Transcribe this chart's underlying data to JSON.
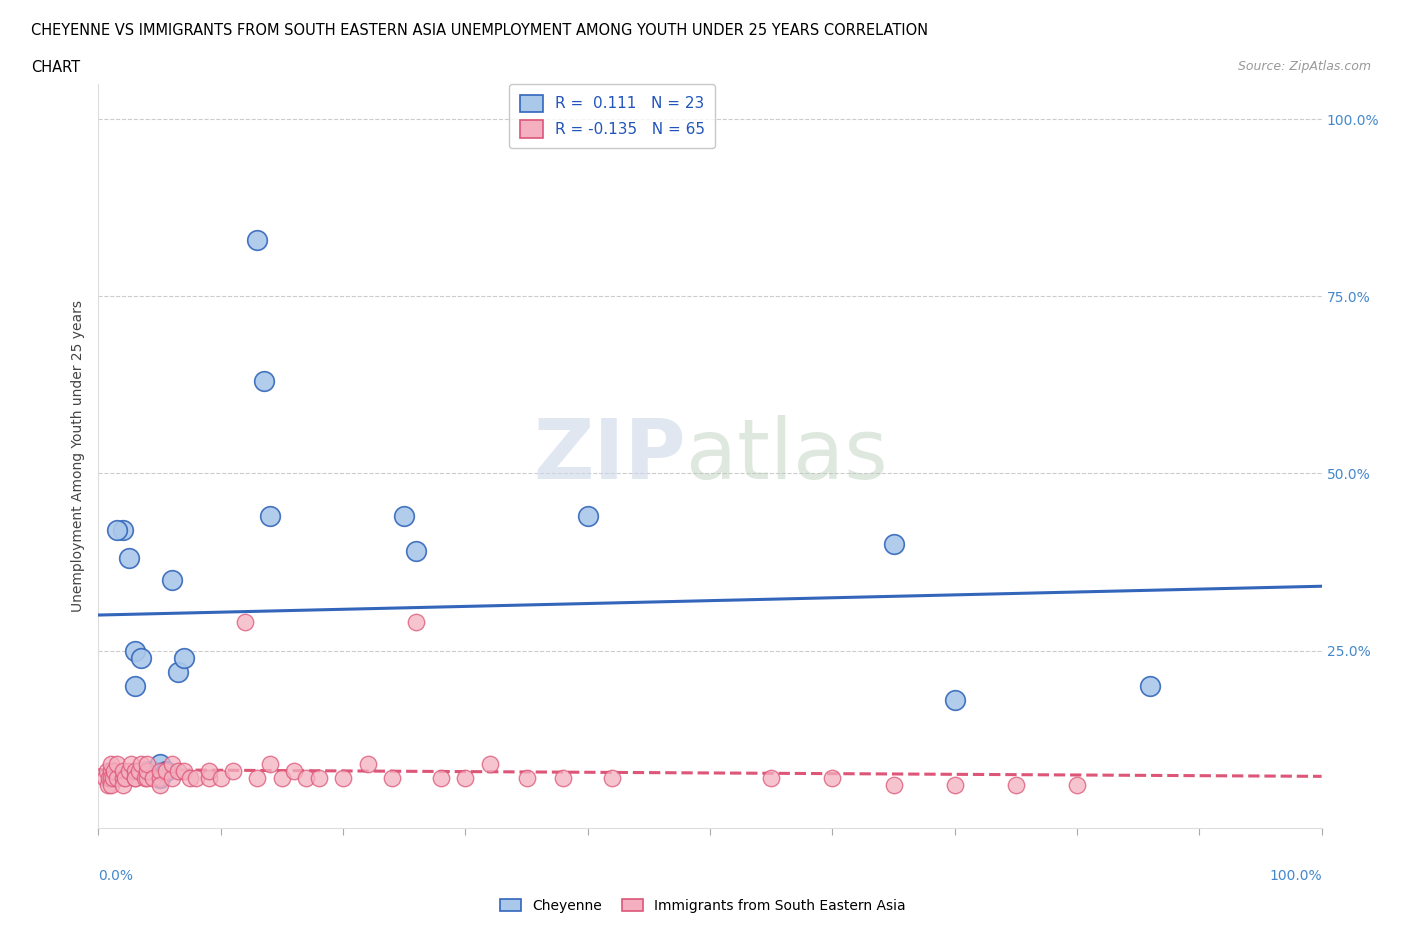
{
  "title_line1": "CHEYENNE VS IMMIGRANTS FROM SOUTH EASTERN ASIA UNEMPLOYMENT AMONG YOUTH UNDER 25 YEARS CORRELATION",
  "title_line2": "CHART",
  "source_text": "Source: ZipAtlas.com",
  "ylabel": "Unemployment Among Youth under 25 years",
  "cheyenne_R": 0.111,
  "cheyenne_N": 23,
  "immigrant_R": -0.135,
  "immigrant_N": 65,
  "cheyenne_color": "#aac8ea",
  "immigrant_color": "#f4b0c0",
  "cheyenne_line_color": "#3366bb",
  "immigrant_line_color": "#dd5577",
  "ytick_values": [
    0.25,
    0.5,
    0.75,
    1.0
  ],
  "ytick_labels": [
    "25.0%",
    "50.0%",
    "75.0%",
    "100.0%"
  ],
  "cheyenne_x": [
    0.02,
    0.025,
    0.03,
    0.035,
    0.04,
    0.045,
    0.05,
    0.05,
    0.055,
    0.06,
    0.065,
    0.07,
    0.13,
    0.135,
    0.14,
    0.25,
    0.26,
    0.4,
    0.65,
    0.7,
    0.86,
    0.015,
    0.03
  ],
  "cheyenne_y": [
    0.42,
    0.38,
    0.25,
    0.24,
    0.08,
    0.08,
    0.07,
    0.09,
    0.08,
    0.35,
    0.22,
    0.24,
    0.83,
    0.63,
    0.44,
    0.44,
    0.39,
    0.44,
    0.4,
    0.18,
    0.2,
    0.42,
    0.2
  ],
  "immigrant_x": [
    0.005,
    0.007,
    0.008,
    0.009,
    0.01,
    0.01,
    0.01,
    0.01,
    0.012,
    0.013,
    0.015,
    0.015,
    0.02,
    0.02,
    0.02,
    0.022,
    0.025,
    0.027,
    0.03,
    0.03,
    0.03,
    0.033,
    0.035,
    0.038,
    0.04,
    0.04,
    0.04,
    0.045,
    0.05,
    0.05,
    0.05,
    0.055,
    0.06,
    0.06,
    0.065,
    0.07,
    0.075,
    0.08,
    0.09,
    0.09,
    0.1,
    0.11,
    0.12,
    0.13,
    0.14,
    0.15,
    0.16,
    0.17,
    0.18,
    0.2,
    0.22,
    0.24,
    0.26,
    0.28,
    0.3,
    0.32,
    0.35,
    0.38,
    0.42,
    0.55,
    0.6,
    0.65,
    0.7,
    0.75,
    0.8
  ],
  "immigrant_y": [
    0.07,
    0.08,
    0.06,
    0.07,
    0.08,
    0.07,
    0.09,
    0.06,
    0.07,
    0.08,
    0.07,
    0.09,
    0.07,
    0.08,
    0.06,
    0.07,
    0.08,
    0.09,
    0.07,
    0.08,
    0.07,
    0.08,
    0.09,
    0.07,
    0.07,
    0.08,
    0.09,
    0.07,
    0.07,
    0.08,
    0.06,
    0.08,
    0.07,
    0.09,
    0.08,
    0.08,
    0.07,
    0.07,
    0.07,
    0.08,
    0.07,
    0.08,
    0.29,
    0.07,
    0.09,
    0.07,
    0.08,
    0.07,
    0.07,
    0.07,
    0.09,
    0.07,
    0.29,
    0.07,
    0.07,
    0.09,
    0.07,
    0.07,
    0.07,
    0.07,
    0.07,
    0.06,
    0.06,
    0.06,
    0.06
  ]
}
